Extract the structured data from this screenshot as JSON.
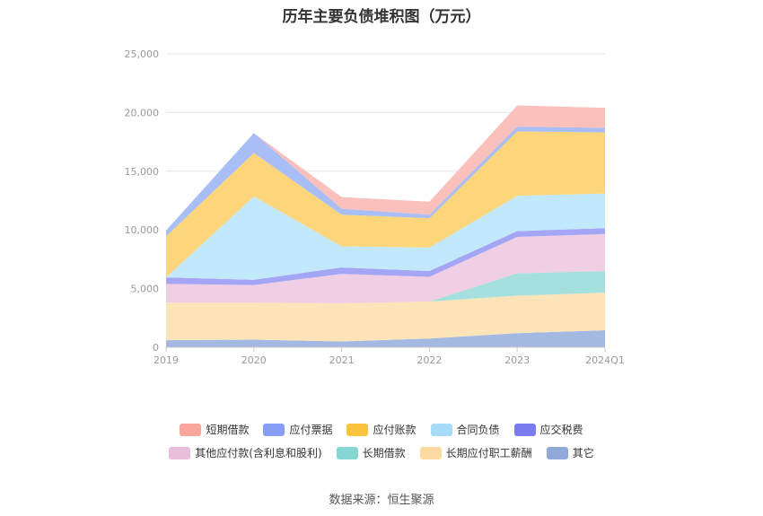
{
  "title": "历年主要负债堆积图（万元）",
  "source": "数据来源：恒生聚源",
  "chart_data": {
    "type": "area",
    "stacked": true,
    "categories": [
      "2019",
      "2020",
      "2021",
      "2022",
      "2023",
      "2024Q1"
    ],
    "ylim": [
      0,
      25000
    ],
    "yticks": [
      "0",
      "5,000",
      "10,000",
      "15,000",
      "20,000",
      "25,000"
    ],
    "ytick_values": [
      0,
      5000,
      10000,
      15000,
      20000,
      25000
    ],
    "grid": true,
    "legend_position": "bottom",
    "series": [
      {
        "name": "其它",
        "color": "#a3b9e2",
        "values": [
          600,
          650,
          500,
          750,
          1200,
          1450
        ]
      },
      {
        "name": "长期应付职工薪酬",
        "color": "#fde3b8",
        "values": [
          3200,
          3150,
          3250,
          3150,
          3200,
          3200
        ]
      },
      {
        "name": "长期借款",
        "color": "#a6e0de",
        "values": [
          0,
          0,
          0,
          0,
          1900,
          1850
        ]
      },
      {
        "name": "其他应付款(含利息和股利)",
        "color": "#f0cfe5",
        "values": [
          1600,
          1500,
          2500,
          2100,
          3100,
          3150
        ]
      },
      {
        "name": "应交税费",
        "color": "#a4a6f5",
        "values": [
          550,
          450,
          550,
          500,
          500,
          500
        ]
      },
      {
        "name": "合同负债",
        "color": "#c2e8fb",
        "values": [
          0,
          7100,
          1800,
          2000,
          3000,
          2950
        ]
      },
      {
        "name": "应付账款",
        "color": "#fdd67c",
        "values": [
          3500,
          3700,
          2700,
          2500,
          5500,
          5200
        ]
      },
      {
        "name": "应付票据",
        "color": "#a9bdf7",
        "values": [
          500,
          1700,
          500,
          300,
          400,
          400
        ]
      },
      {
        "name": "短期借款",
        "color": "#fac0bb",
        "values": [
          0,
          0,
          1000,
          1100,
          1800,
          1700
        ]
      }
    ]
  },
  "legend": {
    "row1": [
      {
        "name": "短期借款",
        "color": "#f8a59b"
      },
      {
        "name": "应付票据",
        "color": "#879ef7"
      },
      {
        "name": "应付账款",
        "color": "#fcc43e"
      },
      {
        "name": "合同负债",
        "color": "#a7dcf8"
      },
      {
        "name": "应交税费",
        "color": "#7a7bef"
      }
    ],
    "row2": [
      {
        "name": "其他应付款(含利息和股利)",
        "color": "#e9bfdc"
      },
      {
        "name": "长期借款",
        "color": "#86d6d3"
      },
      {
        "name": "长期应付职工薪酬",
        "color": "#fcd9a0"
      },
      {
        "name": "其它",
        "color": "#8fa9db"
      }
    ]
  }
}
